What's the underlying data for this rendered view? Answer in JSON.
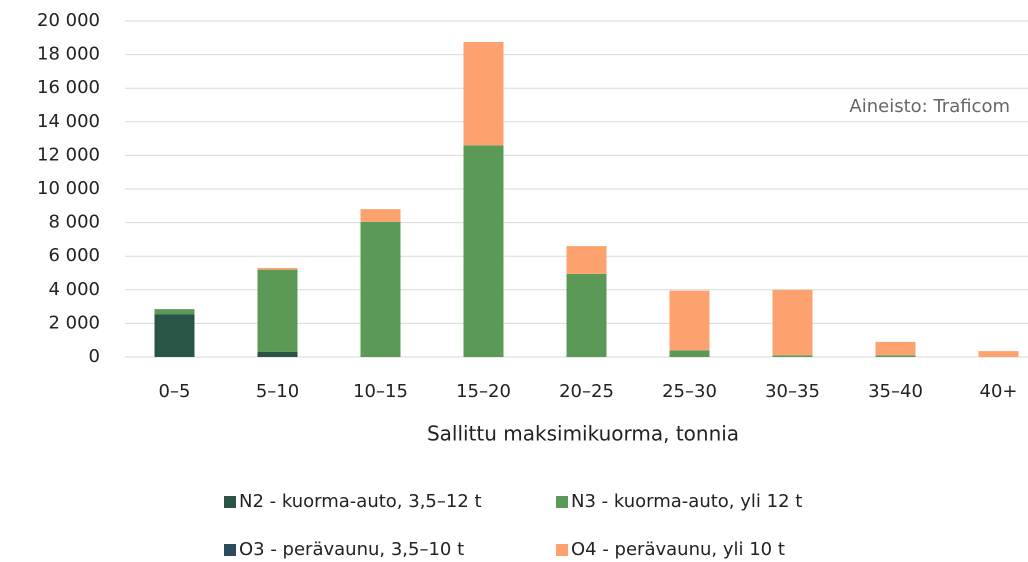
{
  "chart_data": {
    "type": "bar",
    "stacked": true,
    "annotation": "Aineisto: Traficom",
    "x_label": "Sallittu maksimikuorma, tonnia",
    "categories": [
      "0–5",
      "5–10",
      "10–15",
      "15–20",
      "20–25",
      "25–30",
      "30–35",
      "35–40",
      "40+"
    ],
    "series": [
      {
        "name": "N2 - kuorma-auto, 3,5–12 t",
        "color": "#2a5446",
        "values": [
          2550,
          300,
          0,
          0,
          0,
          0,
          0,
          0,
          0
        ]
      },
      {
        "name": "N3 - kuorma-auto, yli 12 t",
        "color": "#5b9a56",
        "values": [
          300,
          4900,
          8050,
          12600,
          4950,
          400,
          100,
          100,
          0
        ]
      },
      {
        "name": "O3 - perävaunu, 3,5–10 t",
        "color": "#2e4a5e",
        "values": [
          0,
          0,
          0,
          0,
          0,
          0,
          0,
          0,
          0
        ]
      },
      {
        "name": "O4 - perävaunu, yli 10 t",
        "color": "#fda26f",
        "values": [
          0,
          100,
          750,
          6150,
          1650,
          3550,
          3900,
          800,
          350
        ]
      }
    ],
    "ylim": [
      0,
      20000
    ],
    "yticks": [
      {
        "value": 0,
        "label": "0"
      },
      {
        "value": 2000,
        "label": "2 000"
      },
      {
        "value": 4000,
        "label": "4 000"
      },
      {
        "value": 6000,
        "label": "6 000"
      },
      {
        "value": 8000,
        "label": "8 000"
      },
      {
        "value": 10000,
        "label": "10 000"
      },
      {
        "value": 12000,
        "label": "12 000"
      },
      {
        "value": 14000,
        "label": "14 000"
      },
      {
        "value": 16000,
        "label": "16 000"
      },
      {
        "value": 18000,
        "label": "18 000"
      },
      {
        "value": 20000,
        "label": "20 000"
      }
    ],
    "grid": true
  }
}
